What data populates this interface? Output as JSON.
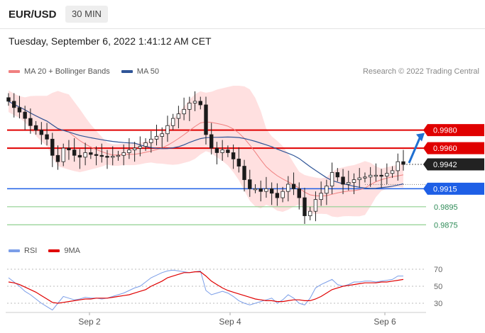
{
  "header": {
    "symbol": "EUR/USD",
    "timeframe": "30 MIN"
  },
  "datetime": "Tuesday, September 6, 2022 1:41:12 AM CET",
  "legend": {
    "items": [
      {
        "label": "MA 20 + Bollinger Bands",
        "color": "#f08080"
      },
      {
        "label": "MA 50",
        "color": "#2f5597"
      }
    ],
    "copyright": "Research © 2022 Trading Central"
  },
  "rsi_legend": {
    "items": [
      {
        "label": "RSI",
        "color": "#7b9ee8"
      },
      {
        "label": "9MA",
        "color": "#e00000"
      }
    ]
  },
  "levels": [
    {
      "value": "0.9980",
      "kind": "resistance",
      "color": "#e00000",
      "tag": "box"
    },
    {
      "value": "0.9960",
      "kind": "resistance",
      "color": "#e00000",
      "tag": "box"
    },
    {
      "value": "0.9942",
      "kind": "last-price",
      "color": "#222222",
      "tag": "box"
    },
    {
      "value": "0.9915",
      "kind": "pivot",
      "color": "#1e5fe6",
      "tag": "box"
    },
    {
      "value": "0.9895",
      "kind": "support",
      "color": "#2e8b57",
      "tag": "text"
    },
    {
      "value": "0.9875",
      "kind": "support",
      "color": "#2e8b57",
      "tag": "text"
    }
  ],
  "x_labels": [
    "Sep 2",
    "Sep 4",
    "Sep 6"
  ],
  "rsi_ticks": [
    "70",
    "50",
    "30"
  ],
  "chart_data": [
    {
      "type": "candlestick",
      "title": "EUR/USD",
      "ylim": [
        0.9865,
        1.003
      ],
      "series": [
        {
          "name": "EUR/USD",
          "close": [
            1.0012,
            1.0005,
            1.0,
            0.9993,
            0.9985,
            0.998,
            0.9975,
            0.997,
            0.9952,
            0.9945,
            0.996,
            0.9958,
            0.9952,
            0.995,
            0.9955,
            0.9953,
            0.9952,
            0.9951,
            0.995,
            0.9951,
            0.9952,
            0.9955,
            0.9958,
            0.996,
            0.9962,
            0.9966,
            0.997,
            0.9973,
            0.9976,
            0.9985,
            0.9993,
            0.9998,
            1.0003,
            1.001,
            1.0012,
            1.0008,
            0.9975,
            0.996,
            0.9955,
            0.9958,
            0.9955,
            0.9948,
            0.994,
            0.9925,
            0.9915,
            0.9915,
            0.9912,
            0.9915,
            0.991,
            0.9905,
            0.9912,
            0.992,
            0.9915,
            0.9905,
            0.9885,
            0.989,
            0.9903,
            0.991,
            0.9918,
            0.9933,
            0.9928,
            0.992,
            0.9922,
            0.9925,
            0.9927,
            0.9928,
            0.993,
            0.993,
            0.9929,
            0.9932,
            0.9935,
            0.9945,
            0.9942
          ]
        },
        {
          "name": "MA 20",
          "values": []
        },
        {
          "name": "MA 50",
          "values": []
        }
      ]
    },
    {
      "type": "line",
      "ylim": [
        20,
        80
      ],
      "series": [
        {
          "name": "RSI",
          "values": [
            60,
            55,
            50,
            44,
            40,
            35,
            30,
            26,
            22,
            30,
            38,
            36,
            34,
            35,
            37,
            36,
            36,
            35,
            36,
            38,
            40,
            42,
            45,
            48,
            50,
            55,
            60,
            63,
            66,
            68,
            69,
            68,
            67,
            66,
            67,
            68,
            45,
            40,
            42,
            44,
            42,
            38,
            33,
            30,
            28,
            30,
            32,
            34,
            36,
            30,
            34,
            40,
            36,
            30,
            28,
            36,
            48,
            52,
            55,
            58,
            52,
            50,
            52,
            55,
            55,
            56,
            56,
            55,
            56,
            57,
            58,
            62,
            62
          ]
        },
        {
          "name": "9MA",
          "values": [
            55,
            54,
            52,
            49,
            46,
            43,
            39,
            35,
            31,
            30,
            31,
            32,
            33,
            34,
            35,
            35,
            36,
            36,
            36,
            37,
            38,
            39,
            40,
            42,
            44,
            46,
            50,
            53,
            56,
            60,
            62,
            64,
            66,
            66,
            67,
            67,
            62,
            56,
            52,
            48,
            45,
            43,
            41,
            39,
            37,
            35,
            34,
            33,
            33,
            32,
            32,
            33,
            34,
            34,
            33,
            33,
            35,
            38,
            42,
            46,
            48,
            50,
            51,
            52,
            53,
            54,
            54,
            54,
            55,
            55,
            56,
            57,
            58
          ]
        }
      ]
    }
  ]
}
